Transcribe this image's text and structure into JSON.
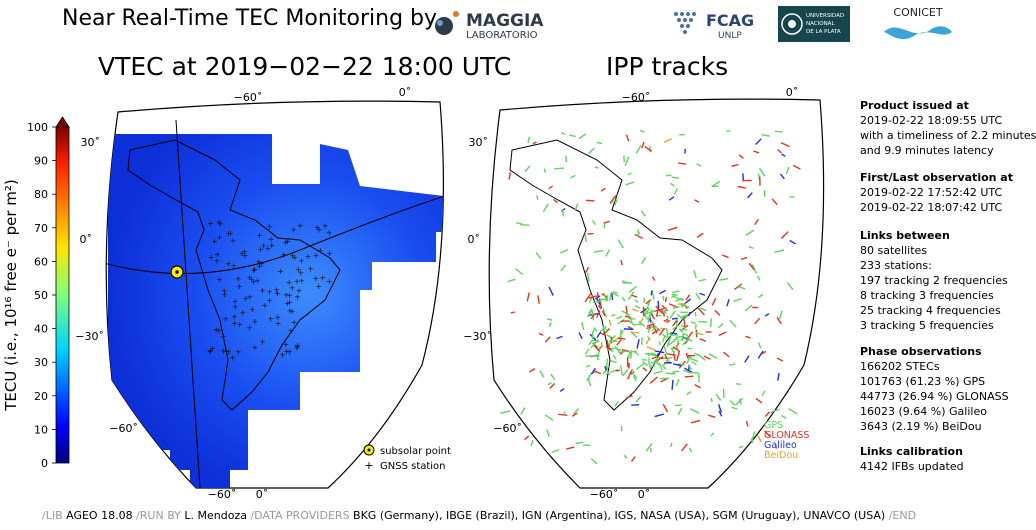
{
  "header": {
    "title": "Near Real-Time TEC Monitoring by",
    "logos": {
      "maggia": {
        "name": "MAGGIA",
        "subtitle": "LABORATORIO"
      },
      "fcag": {
        "name": "FCAG",
        "subtitle": "UNLP"
      },
      "unlp": {
        "lines": [
          "UNIVERSIDAD",
          "NACIONAL",
          "DE LA PLATA"
        ]
      },
      "conicet": {
        "name": "CONICET"
      }
    }
  },
  "vtec_map": {
    "title": "VTEC at 2019−02−22 18:00 UTC"
  },
  "ipp_map": {
    "title": "IPP tracks"
  },
  "map_labels": {
    "lon_top": [
      "−60˚",
      "0˚"
    ],
    "lon_bottom": [
      "−60˚",
      "0˚"
    ],
    "lat": [
      "30˚",
      "0˚",
      "−30˚",
      "−60˚"
    ]
  },
  "colorbar": {
    "label": "TECU (i.e., 10¹⁶ free e⁻ per m²)",
    "ticks": [
      "0",
      "10",
      "20",
      "30",
      "40",
      "50",
      "60",
      "70",
      "80",
      "90",
      "100"
    ]
  },
  "vtec_legend": {
    "subsolar": "subsolar point",
    "gnss": "GNSS station"
  },
  "ipp_legend": [
    {
      "label": "GPS",
      "color": "#5cd65c"
    },
    {
      "label": "GLONASS",
      "color": "#e8321e"
    },
    {
      "label": "Galileo",
      "color": "#1e2ee8"
    },
    {
      "label": "BeiDou",
      "color": "#f0a030"
    }
  ],
  "info": {
    "product": {
      "heading": "Product issued at",
      "lines": [
        "2019-02-22 18:09:55 UTC",
        "with a timeliness of 2.2 minutes",
        "and 9.9 minutes latency"
      ]
    },
    "observation": {
      "heading": "First/Last observation at",
      "lines": [
        "2019-02-22 17:52:42 UTC",
        "2019-02-22 18:07:42 UTC"
      ]
    },
    "links": {
      "heading": "Links between",
      "lines": [
        "80 satellites",
        "233 stations:",
        "197 tracking 2 frequencies",
        "8 tracking 3 frequencies",
        "25 tracking 4 frequencies",
        "3 tracking 5 frequencies"
      ]
    },
    "phase": {
      "heading": "Phase observations",
      "lines": [
        "166202 STECs",
        "101763 (61.23 %) GPS",
        "44773 (26.94 %) GLONASS",
        "16023 (9.64 %) Galileo",
        "3643 (2.19 %) BeiDou"
      ]
    },
    "calibration": {
      "heading": "Links calibration",
      "lines": [
        "4142 IFBs updated"
      ]
    }
  },
  "footer": {
    "parts": [
      {
        "text": "/LIB ",
        "muted": true
      },
      {
        "text": "AGEO 18.08 ",
        "muted": false
      },
      {
        "text": "/RUN BY ",
        "muted": true
      },
      {
        "text": "L. Mendoza ",
        "muted": false
      },
      {
        "text": "/DATA PROVIDERS ",
        "muted": true
      },
      {
        "text": "BKG (Germany), IBGE (Brazil), IGN (Argentina), IGS, NASA (USA), SGM (Uruguay), UNAVCO (USA) ",
        "muted": false
      },
      {
        "text": "/END",
        "muted": true
      }
    ]
  },
  "chart_data": [
    {
      "type": "heatmap",
      "title": "VTEC at 2019−02−22 18:00 UTC",
      "colorbar_label": "TECU (i.e., 10¹⁶ free e⁻ per m²)",
      "colorbar_range": [
        0,
        100
      ],
      "legend": [
        "subsolar point",
        "GNSS station"
      ]
    },
    {
      "type": "scatter",
      "title": "IPP tracks",
      "series": [
        {
          "name": "GPS"
        },
        {
          "name": "GLONASS"
        },
        {
          "name": "Galileo"
        },
        {
          "name": "BeiDou"
        }
      ]
    }
  ]
}
